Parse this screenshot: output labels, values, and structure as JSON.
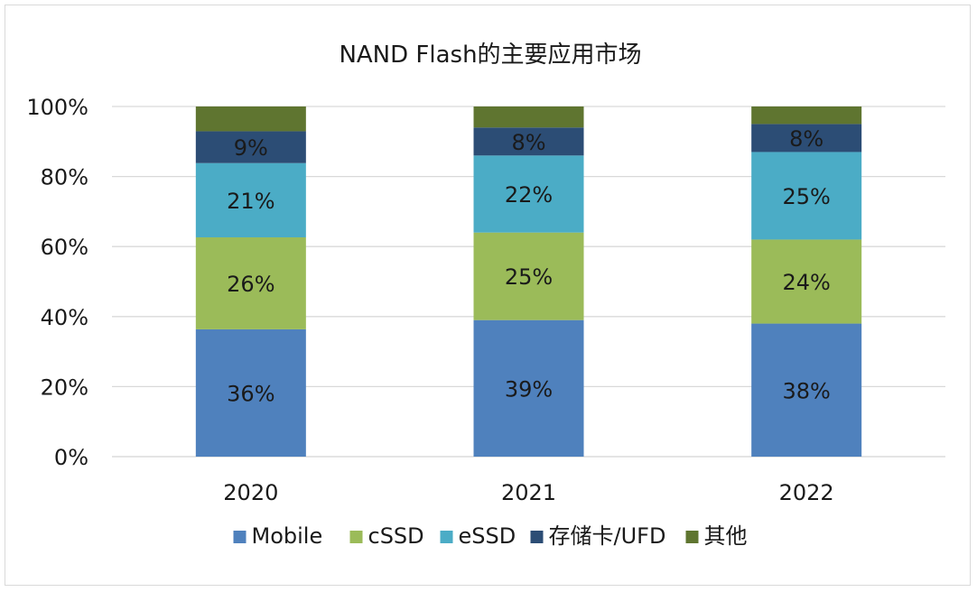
{
  "chart_data": {
    "type": "bar",
    "stacked": true,
    "title": "NAND Flash的主要应用市场",
    "xlabel": "",
    "ylabel": "",
    "ylim": [
      0,
      100
    ],
    "yticks": [
      "0%",
      "20%",
      "40%",
      "60%",
      "80%",
      "100%"
    ],
    "categories": [
      "2020",
      "2021",
      "2022"
    ],
    "series": [
      {
        "name": "Mobile",
        "color": "#4f81bd",
        "values": [
          36,
          39,
          38
        ],
        "labels": [
          "36%",
          "39%",
          "38%"
        ]
      },
      {
        "name": "cSSD",
        "color": "#9bbb59",
        "values": [
          26,
          25,
          24
        ],
        "labels": [
          "26%",
          "25%",
          "24%"
        ]
      },
      {
        "name": "eSSD",
        "color": "#4bacc6",
        "values": [
          21,
          22,
          25
        ],
        "labels": [
          "21%",
          "22%",
          "25%"
        ]
      },
      {
        "name": "存储卡/UFD",
        "color": "#2c4d75",
        "values": [
          9,
          8,
          8
        ],
        "labels": [
          "9%",
          "8%",
          "8%"
        ]
      },
      {
        "name": "其他",
        "color": "#5f7530",
        "values": [
          7,
          6,
          5
        ],
        "labels": [
          "",
          "",
          ""
        ]
      }
    ],
    "grid": true,
    "legend": "bottom"
  }
}
